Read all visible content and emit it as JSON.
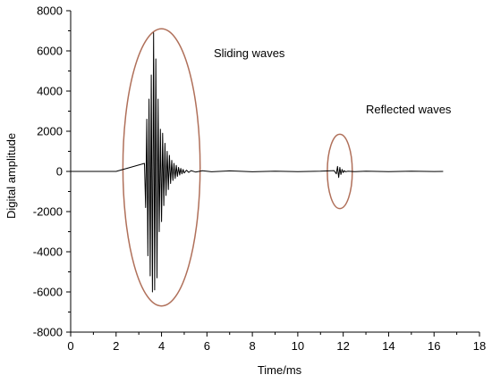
{
  "chart_data": {
    "type": "line",
    "title": "",
    "xlabel": "Time/ms",
    "ylabel": "Digital amplitude",
    "xlim": [
      0,
      18
    ],
    "ylim": [
      -8000,
      8000
    ],
    "xticks": [
      0,
      2,
      4,
      6,
      8,
      10,
      12,
      14,
      16,
      18
    ],
    "yticks": [
      -8000,
      -6000,
      -4000,
      -2000,
      0,
      2000,
      4000,
      6000,
      8000
    ],
    "grid": false,
    "line_color": "#000000",
    "ellipse_color": "#b0705a",
    "series": [
      {
        "x": [
          0.0,
          2.0,
          3.25,
          3.3,
          3.35,
          3.4,
          3.45,
          3.5,
          3.55,
          3.6,
          3.65,
          3.7,
          3.75,
          3.8,
          3.85,
          3.9,
          3.95,
          4.0,
          4.05,
          4.1,
          4.15,
          4.2,
          4.25,
          4.3,
          4.35,
          4.4,
          4.45,
          4.5,
          4.55,
          4.6,
          4.65,
          4.7,
          4.75,
          4.8,
          4.85,
          4.9,
          4.95,
          5.0,
          5.1,
          5.2,
          5.3,
          5.5,
          5.8,
          6.2,
          7.0,
          8.0,
          9.0,
          10.0,
          11.0,
          11.6,
          11.7,
          11.75,
          11.8,
          11.85,
          11.9,
          11.95,
          12.0,
          12.05,
          12.1,
          12.2,
          12.5,
          13.0,
          14.0,
          15.0,
          16.0,
          16.4
        ],
        "y": [
          0,
          0,
          400,
          -1800,
          2600,
          -4200,
          3600,
          -5200,
          4800,
          -6000,
          6900,
          -5900,
          5600,
          -5300,
          3600,
          -3000,
          2100,
          -2500,
          1900,
          -1700,
          1400,
          -1200,
          1000,
          -900,
          800,
          -600,
          550,
          -450,
          400,
          -350,
          300,
          -250,
          200,
          -180,
          150,
          -120,
          100,
          -80,
          60,
          -50,
          40,
          -30,
          30,
          -20,
          25,
          -20,
          15,
          -15,
          10,
          40,
          -120,
          250,
          -300,
          200,
          -150,
          100,
          -60,
          40,
          -20,
          10,
          -15,
          10,
          -10,
          10,
          -5,
          0
        ]
      }
    ],
    "annotations": [
      {
        "text": "Sliding waves",
        "x": 6.3,
        "y": 5700
      },
      {
        "text": "Reflected waves",
        "x": 13.0,
        "y": 2900
      }
    ],
    "ellipses": [
      {
        "cx": 4.0,
        "cy": 200,
        "rx": 1.7,
        "ry": 6900
      },
      {
        "cx": 11.85,
        "cy": 0,
        "rx": 0.55,
        "ry": 1850
      }
    ]
  }
}
